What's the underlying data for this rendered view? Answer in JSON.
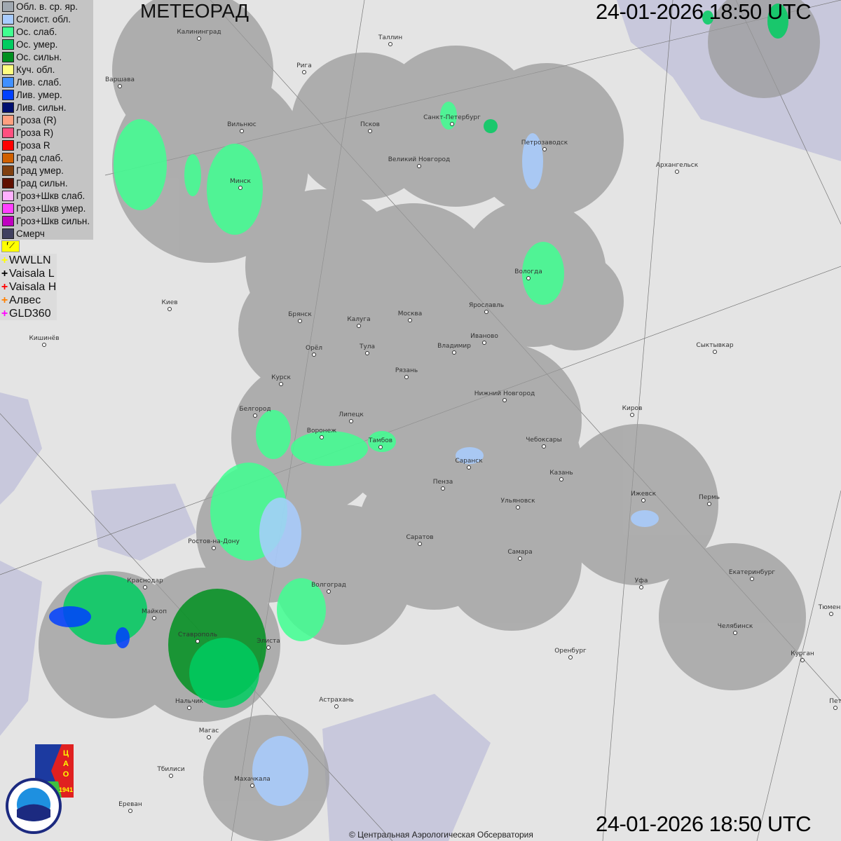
{
  "title": "МЕТЕОРАД",
  "timestamp_top": "24-01-2026  18:50 UTC",
  "timestamp_bottom": "24-01-2026  18:50 UTC",
  "copyright": "© Центральная Аэрологическая Обсерватория",
  "legend": [
    {
      "label": "Обл. в. ср. яр.",
      "color": "#a0a8b0"
    },
    {
      "label": "Слоист. обл.",
      "color": "#a8ccff"
    },
    {
      "label": "Ос. слаб.",
      "color": "#40ff90"
    },
    {
      "label": "Ос. умер.",
      "color": "#00cc60"
    },
    {
      "label": "Ос. сильн.",
      "color": "#009020"
    },
    {
      "label": "Куч. обл.",
      "color": "#ffff80"
    },
    {
      "label": "Лив. слаб.",
      "color": "#4090ff"
    },
    {
      "label": "Лив. умер.",
      "color": "#0040ff"
    },
    {
      "label": "Лив. сильн.",
      "color": "#001070"
    },
    {
      "label": "Гроза (R)",
      "color": "#ffa080"
    },
    {
      "label": "Гроза R)",
      "color": "#ff5080"
    },
    {
      "label": "Гроза R",
      "color": "#ff0000"
    },
    {
      "label": "Град слаб.",
      "color": "#d06000"
    },
    {
      "label": "Град умер.",
      "color": "#804010"
    },
    {
      "label": "Град сильн.",
      "color": "#601000"
    },
    {
      "label": "Гроз+Шкв слаб.",
      "color": "#ffb0ff"
    },
    {
      "label": "Гроз+Шкв умер.",
      "color": "#ff40ff"
    },
    {
      "label": "Гроз+Шкв сильн.",
      "color": "#c000c0"
    },
    {
      "label": "Смерч",
      "color": "#404060"
    }
  ],
  "lightning": [
    {
      "label": "WWLLN",
      "color": "#ffff00"
    },
    {
      "label": "Vaisala L",
      "color": "#000000"
    },
    {
      "label": "Vaisala H",
      "color": "#ff0000"
    },
    {
      "label": "Алвес",
      "color": "#ff8000"
    },
    {
      "label": "GLD360",
      "color": "#ff00ff"
    }
  ],
  "flag_icon": "flag-icon",
  "logos": [
    "ЦАО 1941",
    "РОСГИДРОМЕТ ROSHYDROMET"
  ],
  "cities": [
    [
      "Калининград",
      284,
      55
    ],
    [
      "Таллин",
      557,
      63
    ],
    [
      "Рига",
      434,
      103
    ],
    [
      "Варшава",
      171,
      123
    ],
    [
      "Вильнюс",
      345,
      187
    ],
    [
      "Псков",
      528,
      187
    ],
    [
      "Санкт-Петербург",
      645,
      177
    ],
    [
      "Петрозаводск",
      777,
      213
    ],
    [
      "Архангельск",
      966,
      245
    ],
    [
      "Великий Новгород",
      598,
      237
    ],
    [
      "Минск",
      343,
      268
    ],
    [
      "Вологда",
      754,
      397
    ],
    [
      "Ярославль",
      694,
      445
    ],
    [
      "Москва",
      585,
      457
    ],
    [
      "Калуга",
      512,
      465
    ],
    [
      "Брянск",
      428,
      458
    ],
    [
      "Киев",
      242,
      441
    ],
    [
      "Кишинёв",
      63,
      492
    ],
    [
      "Иваново",
      691,
      489
    ],
    [
      "Владимир",
      648,
      503
    ],
    [
      "Тула",
      524,
      504
    ],
    [
      "Орёл",
      448,
      506
    ],
    [
      "Сыктывкар",
      1020,
      502
    ],
    [
      "Рязань",
      580,
      538
    ],
    [
      "Курск",
      401,
      548
    ],
    [
      "Нижний Новгород",
      720,
      571
    ],
    [
      "Киров",
      902,
      592
    ],
    [
      "Белгород",
      364,
      593
    ],
    [
      "Липецк",
      501,
      601
    ],
    [
      "Воронеж",
      459,
      624
    ],
    [
      "Тамбов",
      543,
      638
    ],
    [
      "Чебоксары",
      776,
      637
    ],
    [
      "Саранск",
      669,
      667
    ],
    [
      "Казань",
      801,
      684
    ],
    [
      "Пенза",
      632,
      697
    ],
    [
      "Ижевск",
      918,
      714
    ],
    [
      "Пермь",
      1012,
      719
    ],
    [
      "Ульяновск",
      739,
      724
    ],
    [
      "Саратов",
      599,
      776
    ],
    [
      "Самара",
      742,
      797
    ],
    [
      "Ростов-на-Дону",
      305,
      782
    ],
    [
      "Волгоград",
      469,
      844
    ],
    [
      "Уфа",
      915,
      838
    ],
    [
      "Екатеринбург",
      1073,
      826
    ],
    [
      "Краснодар",
      207,
      838
    ],
    [
      "Майкоп",
      220,
      882
    ],
    [
      "Тюмень",
      1186,
      876
    ],
    [
      "Ставрополь",
      282,
      915
    ],
    [
      "Элиста",
      383,
      924
    ],
    [
      "Челябинск",
      1049,
      903
    ],
    [
      "Оренбург",
      814,
      938
    ],
    [
      "Курган",
      1145,
      942
    ],
    [
      "Астрахань",
      480,
      1008
    ],
    [
      "Нальчик",
      270,
      1010
    ],
    [
      "Пет",
      1192,
      1010
    ],
    [
      "Магас",
      298,
      1052
    ],
    [
      "Тбилиси",
      244,
      1107
    ],
    [
      "Махачкала",
      360,
      1121
    ],
    [
      "Ереван",
      186,
      1157
    ]
  ]
}
